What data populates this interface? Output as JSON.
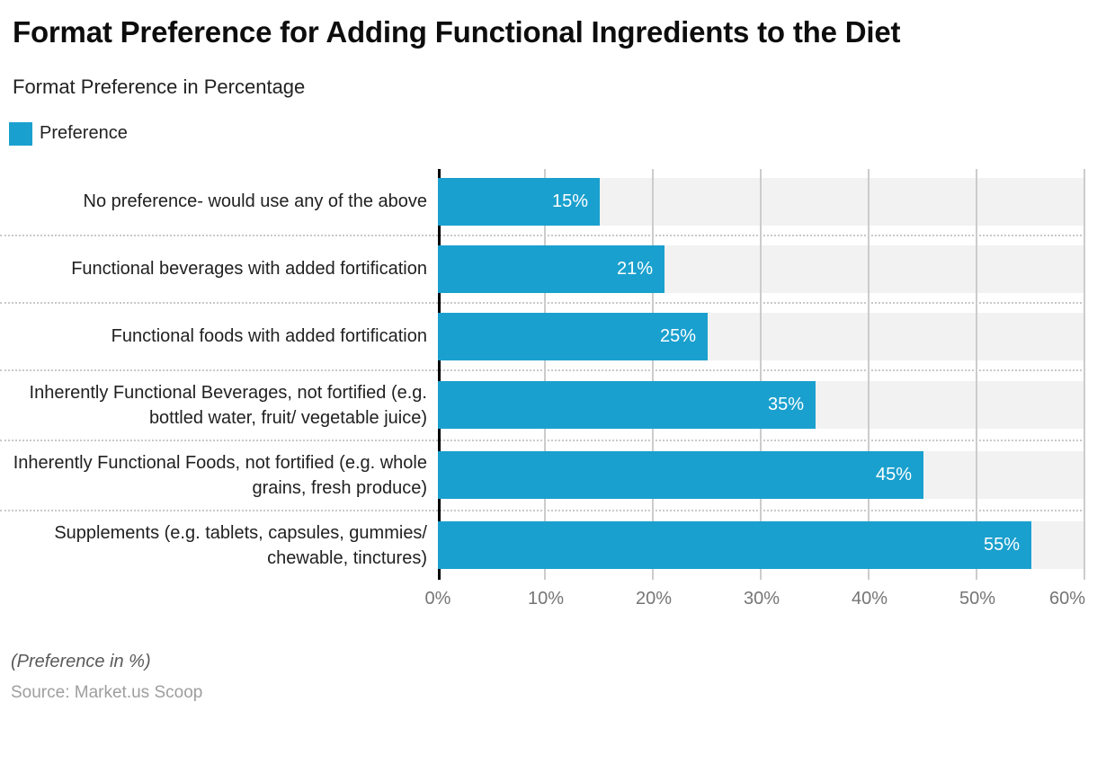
{
  "header": {
    "title": "Format Preference for Adding Functional Ingredients to the Diet",
    "subtitle": "Format Preference in Percentage"
  },
  "legend": {
    "label": "Preference",
    "swatch_color": "#1AA0CE"
  },
  "chart_data": {
    "type": "bar",
    "orientation": "horizontal",
    "title": "Format Preference for Adding Functional Ingredients to the Diet",
    "subtitle": "Format Preference in Percentage",
    "series_name": "Preference",
    "categories": [
      "No preference- would use any of the above",
      "Functional beverages with added fortification",
      "Functional foods with added fortification",
      "Inherently Functional Beverages, not fortified (e.g. bottled water, fruit/ vegetable juice)",
      "Inherently Functional Foods, not fortified (e.g. whole grains, fresh produce)",
      "Supplements (e.g. tablets, capsules, gummies/ chewable, tinctures)"
    ],
    "values": [
      15,
      21,
      25,
      35,
      45,
      55
    ],
    "value_labels": [
      "15%",
      "21%",
      "25%",
      "35%",
      "45%",
      "55%"
    ],
    "xlim": [
      0,
      60
    ],
    "x_ticks": [
      "0%",
      "10%",
      "20%",
      "30%",
      "40%",
      "50%",
      "60%"
    ],
    "grid": true,
    "legend_position": "top-left",
    "bar_color": "#1AA0CE",
    "track_color": "#F2F2F2",
    "gridline_color": "#CCCCCC",
    "separator_color": "#C9C9C9",
    "axis_line_color": "#000000",
    "tick_label_color": "#757575",
    "xlabel": "",
    "ylabel": ""
  },
  "footer": {
    "note": "(Preference in %)",
    "source": "Source: Market.us Scoop"
  }
}
